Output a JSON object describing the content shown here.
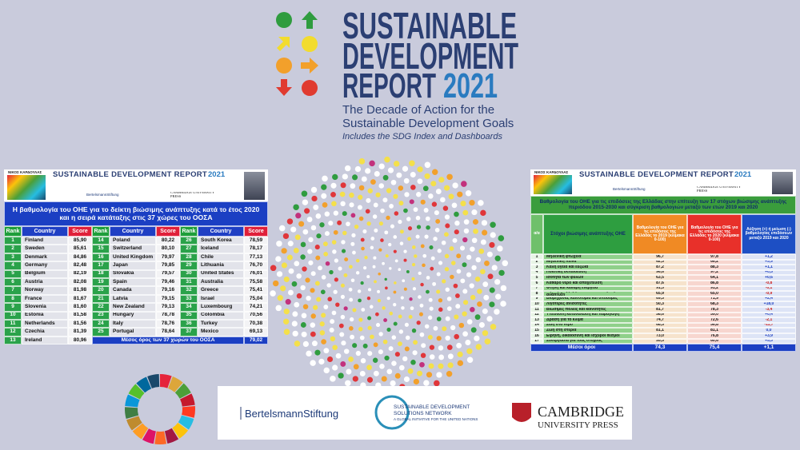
{
  "header": {
    "title_line1": "SUSTAINABLE",
    "title_line2": "DEVELOPMENT",
    "title_report": "REPORT",
    "title_year": "2021",
    "subtitle_line1": "The Decade of Action for the",
    "subtitle_line2": "Sustainable Development Goals",
    "tagline": "Includes the SDG Index and Dashboards"
  },
  "panel_banner": {
    "author": "ΝΙΚΟΣ ΚΑΡΔΟΥΛΑΣ",
    "title": "SUSTAINABLE DEVELOPMENT REPORT",
    "year": "2021",
    "partner1": "BertelsmannStiftung",
    "partner3": "CAMBRIDGE UNIVERSITY PRESS"
  },
  "oecd_table": {
    "title": "Η βαθμολογία του ΟΗΕ για το δείκτη βιώσιμης ανάπτυξης κατά το έτος 2020 και η σειρά κατάταξης στις 37 χώρες του ΟΟΣΑ",
    "columns": [
      "Rank",
      "Country",
      "Score"
    ],
    "rows": [
      [
        1,
        "Finland",
        "85,90"
      ],
      [
        2,
        "Sweden",
        "85,61"
      ],
      [
        3,
        "Denmark",
        "84,86"
      ],
      [
        4,
        "Germany",
        "82,48"
      ],
      [
        5,
        "Belgium",
        "82,19"
      ],
      [
        6,
        "Austria",
        "82,08"
      ],
      [
        7,
        "Norway",
        "81,98"
      ],
      [
        8,
        "France",
        "81,67"
      ],
      [
        9,
        "Slovenia",
        "81,60"
      ],
      [
        10,
        "Estonia",
        "81,58"
      ],
      [
        11,
        "Netherlands",
        "81,56"
      ],
      [
        12,
        "Czechia",
        "81,39"
      ],
      [
        13,
        "Ireland",
        "80,96"
      ],
      [
        14,
        "Poland",
        "80,22"
      ],
      [
        15,
        "Switzerland",
        "80,10"
      ],
      [
        16,
        "United Kingdom",
        "79,97"
      ],
      [
        17,
        "Japan",
        "79,85"
      ],
      [
        18,
        "Slovakia",
        "79,57"
      ],
      [
        19,
        "Spain",
        "79,46"
      ],
      [
        20,
        "Canada",
        "79,16"
      ],
      [
        21,
        "Latvia",
        "79,15"
      ],
      [
        22,
        "New Zealand",
        "79,13"
      ],
      [
        23,
        "Hungary",
        "78,78"
      ],
      [
        24,
        "Italy",
        "78,76"
      ],
      [
        25,
        "Portugal",
        "78,64"
      ],
      [
        26,
        "South Korea",
        "78,59"
      ],
      [
        27,
        "Iceland",
        "78,17"
      ],
      [
        28,
        "Chile",
        "77,13"
      ],
      [
        29,
        "Lithuania",
        "76,70"
      ],
      [
        30,
        "United States",
        "76,01"
      ],
      [
        31,
        "Australia",
        "75,58"
      ],
      [
        32,
        "Greece",
        "75,41"
      ],
      [
        33,
        "Israel",
        "75,04"
      ],
      [
        34,
        "Luxembourg",
        "74,21"
      ],
      [
        35,
        "Colombia",
        "70,56"
      ],
      [
        36,
        "Turkey",
        "70,38"
      ],
      [
        37,
        "Mexico",
        "69,13"
      ]
    ],
    "average": {
      "label": "Μέσος όρος των 37 χωρών του ΟΟΣΑ",
      "score": "79,02"
    }
  },
  "greece_table": {
    "title": "Βαθμολογία του ΟΗΕ για τις επιδόσεις της Ελλάδας στην επίτευξη των 17 στόχων βιώσιμης ανάπτυξης περιόδου 2015-2030 και σύγκριση βαθμολογιών μεταξύ των ετών 2019 και 2020",
    "columns": [
      "α/α",
      "Στόχοι βιώσιμης ανάπτυξης ΟΗΕ",
      "Βαθμολογία του ΟΗΕ για τις επιδόσεις της Ελλάδας το 2019 (κλίμακα 0-100)",
      "Βαθμολογία του ΟΗΕ για τις επιδόσεις της Ελλάδας το 2020 (κλίμακα 0-100)",
      "Αύξηση (+) ή μείωση (-) βαθμολογίας επιδόσεων μεταξύ 2019 και 2020"
    ],
    "rows": [
      [
        1,
        "Μηδενική φτώχεια",
        "96,7",
        "97,8",
        "+1,2"
      ],
      [
        2,
        "Μηδενική πείνα",
        "62,3",
        "66,2",
        "+3,9"
      ],
      [
        3,
        "Καλή υγεία και ευζωία",
        "87,2",
        "88,3",
        "+1,1"
      ],
      [
        4,
        "Ποιοτική εκπαίδευση",
        "96,6",
        "97,2",
        "+0,5"
      ],
      [
        5,
        "Ισότητα των φύλων",
        "63,5",
        "64,1",
        "+0,6"
      ],
      [
        6,
        "Καθαρό νερό και αποχέτευση",
        "87,6",
        "86,8",
        "-0,8"
      ],
      [
        7,
        "Φτηνή και καθαρή ενέργεια",
        "91,3",
        "91,2",
        "-0,1"
      ],
      [
        8,
        "Αξιοπρεπής εργασία και οικονομική ανάπτυξη",
        "65,9",
        "65,0",
        "-0,9"
      ],
      [
        9,
        "Βιομηχανία, καινοτομία και υποδομές",
        "69,5",
        "71,9",
        "+2,4"
      ],
      [
        10,
        "Λιγότερες ανισότητες",
        "50,3",
        "68,3",
        "+18,0"
      ],
      [
        11,
        "Βιώσιμες πόλεις και κοινότητες",
        "81,7",
        "78,3",
        "-3,4"
      ],
      [
        12,
        "Υπεύθυνη κατανάλωση και παραγωγή",
        "58,6",
        "59,0",
        "+0,4"
      ],
      [
        13,
        "Δράση για το κλίμα",
        "74,7",
        "72,6",
        "-2,1"
      ],
      [
        14,
        "Ζωή στο νερό",
        "68,5",
        "56,8",
        "-11,7"
      ],
      [
        15,
        "Ζωή στη στεριά",
        "81,1",
        "81,1",
        "0,0"
      ],
      [
        16,
        "Ειρήνη, δικαιοσύνη και ισχυροί θεσμοί",
        "73,0",
        "76,8",
        "+3,9"
      ],
      [
        17,
        "Συνεργασία για τους στόχους",
        "55,3",
        "60,6",
        "+5,3"
      ]
    ],
    "average": {
      "label": "Μέσοι όροι",
      "score_2019": "74,3",
      "score_2020": "75,4",
      "change": "+1,1"
    }
  },
  "footer": {
    "bertelsmann": "BertelsmannStiftung",
    "sdsn_line1": "SUSTAINABLE DEVELOPMENT",
    "sdsn_line2": "SOLUTIONS NETWORK",
    "sdsn_line3": "A GLOBAL INITIATIVE FOR THE UNITED NATIONS",
    "cambridge_line1": "CAMBRIDGE",
    "cambridge_line2": "UNIVERSITY PRESS"
  }
}
